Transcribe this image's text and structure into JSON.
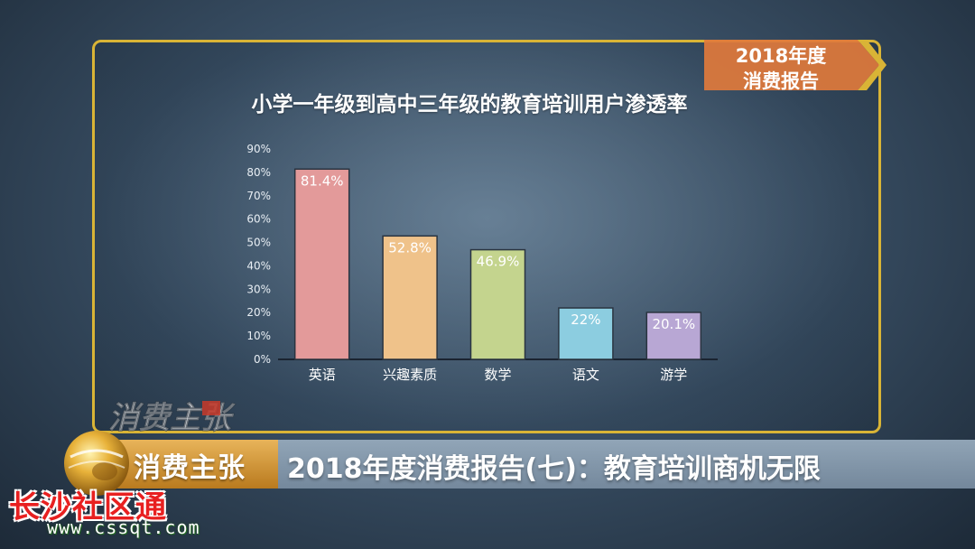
{
  "report_tag": {
    "line1": "2018年度",
    "line2": "消费报告"
  },
  "chart_data": {
    "type": "bar",
    "title": "小学一年级到高中三年级的教育培训用户渗透率",
    "categories": [
      "英语",
      "兴趣素质",
      "数学",
      "语文",
      "游学"
    ],
    "values": [
      81.4,
      52.8,
      46.9,
      22,
      20.1
    ],
    "value_labels": [
      "81.4%",
      "52.8%",
      "46.9%",
      "22%",
      "20.1%"
    ],
    "y_ticks": [
      "0%",
      "10%",
      "20%",
      "30%",
      "40%",
      "50%",
      "60%",
      "70%",
      "80%",
      "90%"
    ],
    "ylim": [
      0,
      90
    ],
    "colors": [
      "#e39a9a",
      "#efc28a",
      "#c4d48e",
      "#8ccde0",
      "#b8a7d4"
    ],
    "xlabel": "",
    "ylabel": "",
    "grid": false
  },
  "watermark": {
    "text": "消费主张"
  },
  "lower_third": {
    "program": "消费主张",
    "headline": "2018年度消费报告(七)：教育培训商机无限"
  },
  "site": {
    "name": "长沙社区通",
    "url": "www.cssqt.com"
  },
  "colors": {
    "frame": "#d9b436",
    "tag": "#e07a3c"
  }
}
